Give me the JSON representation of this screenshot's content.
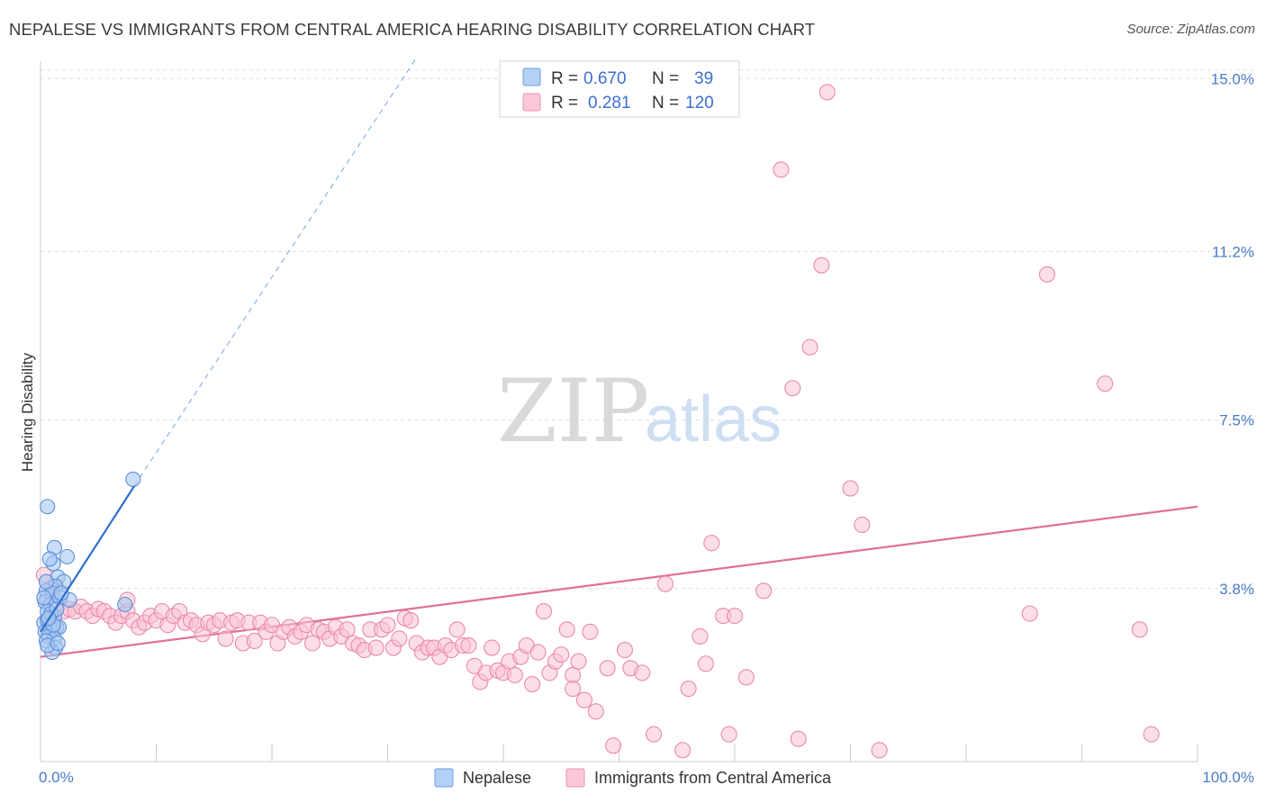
{
  "header": {
    "title": "NEPALESE VS IMMIGRANTS FROM CENTRAL AMERICA HEARING DISABILITY CORRELATION CHART",
    "source": "Source: ZipAtlas.com"
  },
  "watermark": {
    "zip": "ZIP",
    "atlas": "atlas"
  },
  "legend_top": {
    "rows": [
      {
        "r_label": "R =",
        "r_value": "0.670",
        "n_label": "N =",
        "n_value": "39",
        "color": "#9ec3f0"
      },
      {
        "r_label": "R =",
        "r_value": "0.281",
        "n_label": "N =",
        "n_value": "120",
        "color": "#f7b3c8"
      }
    ]
  },
  "legend_bottom": {
    "items": [
      "Nepalese",
      "Immigrants from Central America"
    ]
  },
  "colors": {
    "blue_fill": "#a9c8f2",
    "blue_stroke": "#5a8fd8",
    "blue_line": "#2f6fcc",
    "pink_fill": "#f9c3d4",
    "pink_stroke": "#e98aaa",
    "pink_line": "#e0709a",
    "grid": "#dddddd",
    "tick_text": "#4a7cc7"
  },
  "chart_data": {
    "type": "scatter",
    "title": "NEPALESE VS IMMIGRANTS FROM CENTRAL AMERICA HEARING DISABILITY CORRELATION CHART",
    "xlabel": "",
    "ylabel": "Hearing Disability",
    "xlim": [
      0,
      100
    ],
    "ylim": [
      0,
      15.5
    ],
    "x_tick_labels": [
      "0.0%",
      "100.0%"
    ],
    "y_ticks": [
      3.8,
      7.5,
      11.2,
      15.0
    ],
    "y_tick_labels": [
      "3.8%",
      "7.5%",
      "11.2%",
      "15.0%"
    ],
    "grid": "horizontal dashed",
    "series": [
      {
        "name": "Nepalese",
        "r": 0.67,
        "n": 39,
        "trend": {
          "x": [
            0.0,
            8.1
          ],
          "y": [
            2.85,
            6.05
          ],
          "extends_dashed_to": [
            32.6,
            15.5
          ]
        },
        "points": [
          [
            0.6,
            5.6
          ],
          [
            1.2,
            4.7
          ],
          [
            1.1,
            4.35
          ],
          [
            2.3,
            4.5
          ],
          [
            0.8,
            4.45
          ],
          [
            1.5,
            4.05
          ],
          [
            2.0,
            3.95
          ],
          [
            1.3,
            3.85
          ],
          [
            0.5,
            3.75
          ],
          [
            1.0,
            3.7
          ],
          [
            0.4,
            3.5
          ],
          [
            0.9,
            3.45
          ],
          [
            1.7,
            3.6
          ],
          [
            2.5,
            3.55
          ],
          [
            7.3,
            3.45
          ],
          [
            0.6,
            3.3
          ],
          [
            1.2,
            3.2
          ],
          [
            0.3,
            3.05
          ],
          [
            0.8,
            3.0
          ],
          [
            1.4,
            2.95
          ],
          [
            0.6,
            3.1
          ],
          [
            1.0,
            2.9
          ],
          [
            0.4,
            2.85
          ],
          [
            1.6,
            2.95
          ],
          [
            0.7,
            2.75
          ],
          [
            1.2,
            2.7
          ],
          [
            0.5,
            2.65
          ],
          [
            1.3,
            2.5
          ],
          [
            1.0,
            2.4
          ],
          [
            0.6,
            2.55
          ],
          [
            8.0,
            6.2
          ],
          [
            0.9,
            3.25
          ],
          [
            1.4,
            3.35
          ],
          [
            0.5,
            3.95
          ],
          [
            1.8,
            3.7
          ],
          [
            0.3,
            3.6
          ],
          [
            1.1,
            3.0
          ],
          [
            0.7,
            3.15
          ],
          [
            1.5,
            2.6
          ]
        ]
      },
      {
        "name": "Immigrants from Central America",
        "r": 0.281,
        "n": 120,
        "trend": {
          "x": [
            0.0,
            100.0
          ],
          "y": [
            2.3,
            5.6
          ]
        },
        "points": [
          [
            0.3,
            4.1
          ],
          [
            0.6,
            3.6
          ],
          [
            1.0,
            3.8
          ],
          [
            1.5,
            3.5
          ],
          [
            2.0,
            3.3
          ],
          [
            2.5,
            3.35
          ],
          [
            3.0,
            3.3
          ],
          [
            3.5,
            3.4
          ],
          [
            4.0,
            3.3
          ],
          [
            4.5,
            3.2
          ],
          [
            5.0,
            3.35
          ],
          [
            5.5,
            3.3
          ],
          [
            6.0,
            3.2
          ],
          [
            6.5,
            3.05
          ],
          [
            7.0,
            3.2
          ],
          [
            7.5,
            3.3
          ],
          [
            7.5,
            3.55
          ],
          [
            8.0,
            3.1
          ],
          [
            8.5,
            2.95
          ],
          [
            9.0,
            3.05
          ],
          [
            9.5,
            3.2
          ],
          [
            10.0,
            3.1
          ],
          [
            10.5,
            3.3
          ],
          [
            11.0,
            3.0
          ],
          [
            11.5,
            3.2
          ],
          [
            12.0,
            3.3
          ],
          [
            12.5,
            3.05
          ],
          [
            13.0,
            3.1
          ],
          [
            13.5,
            3.0
          ],
          [
            14.0,
            2.8
          ],
          [
            14.5,
            3.05
          ],
          [
            15.0,
            3.0
          ],
          [
            15.5,
            3.1
          ],
          [
            16.0,
            2.7
          ],
          [
            16.5,
            3.05
          ],
          [
            17.0,
            3.1
          ],
          [
            17.5,
            2.6
          ],
          [
            18.0,
            3.05
          ],
          [
            18.5,
            2.65
          ],
          [
            19.0,
            3.05
          ],
          [
            19.5,
            2.85
          ],
          [
            20.0,
            3.0
          ],
          [
            20.5,
            2.6
          ],
          [
            21.0,
            2.85
          ],
          [
            21.5,
            2.95
          ],
          [
            22.0,
            2.75
          ],
          [
            22.5,
            2.85
          ],
          [
            23.0,
            3.0
          ],
          [
            23.5,
            2.6
          ],
          [
            24.0,
            2.9
          ],
          [
            24.5,
            2.85
          ],
          [
            25.0,
            2.7
          ],
          [
            25.5,
            2.95
          ],
          [
            26.0,
            2.75
          ],
          [
            26.5,
            2.9
          ],
          [
            27.0,
            2.6
          ],
          [
            27.5,
            2.55
          ],
          [
            28.0,
            2.45
          ],
          [
            28.5,
            2.9
          ],
          [
            29.0,
            2.5
          ],
          [
            29.5,
            2.9
          ],
          [
            30.0,
            3.0
          ],
          [
            30.5,
            2.5
          ],
          [
            31.0,
            2.7
          ],
          [
            31.5,
            3.15
          ],
          [
            32.0,
            3.1
          ],
          [
            32.5,
            2.6
          ],
          [
            33.0,
            2.4
          ],
          [
            33.5,
            2.5
          ],
          [
            34.0,
            2.5
          ],
          [
            34.5,
            2.3
          ],
          [
            35.0,
            2.55
          ],
          [
            35.5,
            2.45
          ],
          [
            36.0,
            2.9
          ],
          [
            36.5,
            2.55
          ],
          [
            37.0,
            2.55
          ],
          [
            37.5,
            2.1
          ],
          [
            38.0,
            1.75
          ],
          [
            38.5,
            1.95
          ],
          [
            39.0,
            2.5
          ],
          [
            39.5,
            2.0
          ],
          [
            40.0,
            1.95
          ],
          [
            40.5,
            2.2
          ],
          [
            41.0,
            1.9
          ],
          [
            41.5,
            2.3
          ],
          [
            42.0,
            2.55
          ],
          [
            42.5,
            1.7
          ],
          [
            43.0,
            2.4
          ],
          [
            43.5,
            3.3
          ],
          [
            44.0,
            1.95
          ],
          [
            44.5,
            2.2
          ],
          [
            45.0,
            2.35
          ],
          [
            45.5,
            2.9
          ],
          [
            46.0,
            1.9
          ],
          [
            46.5,
            2.2
          ],
          [
            47.0,
            1.35
          ],
          [
            47.5,
            2.85
          ],
          [
            48.0,
            1.1
          ],
          [
            49.0,
            2.05
          ],
          [
            49.5,
            0.35
          ],
          [
            51.0,
            2.05
          ],
          [
            52.0,
            1.95
          ],
          [
            53.0,
            0.6
          ],
          [
            54.0,
            3.9
          ],
          [
            55.5,
            0.25
          ],
          [
            56.0,
            1.6
          ],
          [
            57.0,
            2.75
          ],
          [
            58.0,
            4.8
          ],
          [
            59.0,
            3.2
          ],
          [
            59.5,
            0.6
          ],
          [
            50.5,
            2.45
          ],
          [
            60.0,
            3.2
          ],
          [
            61.0,
            1.85
          ],
          [
            62.5,
            3.75
          ],
          [
            64.0,
            13.0
          ],
          [
            65.0,
            8.2
          ],
          [
            66.5,
            9.1
          ],
          [
            67.5,
            10.9
          ],
          [
            68.0,
            14.7
          ],
          [
            70.0,
            6.0
          ],
          [
            71.0,
            5.2
          ],
          [
            72.5,
            0.25
          ],
          [
            85.5,
            3.25
          ],
          [
            87.0,
            10.7
          ],
          [
            92.0,
            8.3
          ],
          [
            95.0,
            2.9
          ],
          [
            96.0,
            0.6
          ],
          [
            65.5,
            0.5
          ],
          [
            57.5,
            2.15
          ],
          [
            46.0,
            1.6
          ]
        ]
      }
    ]
  }
}
